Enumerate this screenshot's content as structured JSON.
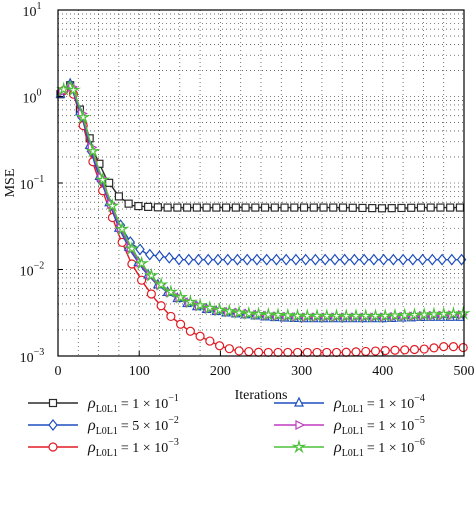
{
  "chart_data": {
    "type": "line",
    "title": "",
    "xlabel": "Iterations",
    "ylabel": "MSE",
    "x_scale": "linear",
    "y_scale": "log",
    "xlim": [
      0,
      500
    ],
    "ylim": [
      0.001,
      10
    ],
    "grid": true,
    "x_ticks": [
      0,
      100,
      200,
      300,
      400,
      500
    ],
    "y_ticks": [
      {
        "value": 0.001,
        "base": "10",
        "exp": "−3"
      },
      {
        "value": 0.01,
        "base": "10",
        "exp": "−2"
      },
      {
        "value": 0.1,
        "base": "10",
        "exp": "−1"
      },
      {
        "value": 1,
        "base": "10",
        "exp": "0"
      },
      {
        "value": 10,
        "base": "10",
        "exp": "1"
      }
    ],
    "legend_position": "bottom",
    "series": [
      {
        "name": "ρL0L1 = 1 × 10−1",
        "legend": {
          "rho": "ρ",
          "sub": "L0L1",
          "coef": "= 1 × 10",
          "exp": "−1"
        },
        "color": "#2b2b2b",
        "marker": "square",
        "x": [
          0,
          15,
          30,
          45,
          60,
          75,
          90,
          110,
          130,
          150,
          200,
          250,
          300,
          350,
          400,
          450,
          500
        ],
        "y": [
          1.0,
          1.35,
          0.6,
          0.22,
          0.11,
          0.07,
          0.055,
          0.053,
          0.052,
          0.052,
          0.052,
          0.052,
          0.052,
          0.052,
          0.051,
          0.052,
          0.052
        ]
      },
      {
        "name": "ρL0L1 = 5 × 10−2",
        "legend": {
          "rho": "ρ",
          "sub": "L0L1",
          "coef": "= 5 × 10",
          "exp": "−2"
        },
        "color": "#1f4fbf",
        "marker": "diamond",
        "x": [
          0,
          15,
          30,
          45,
          60,
          75,
          90,
          110,
          130,
          150,
          200,
          250,
          300,
          350,
          400,
          450,
          500
        ],
        "y": [
          1.0,
          1.4,
          0.55,
          0.17,
          0.07,
          0.035,
          0.02,
          0.015,
          0.014,
          0.013,
          0.013,
          0.013,
          0.013,
          0.013,
          0.013,
          0.013,
          0.013
        ]
      },
      {
        "name": "ρL0L1 = 1 × 10−3",
        "legend": {
          "rho": "ρ",
          "sub": "L0L1",
          "coef": "= 1 × 10",
          "exp": "−3"
        },
        "color": "#e01b24",
        "marker": "circle",
        "x": [
          0,
          15,
          30,
          45,
          60,
          75,
          90,
          105,
          120,
          140,
          160,
          180,
          200,
          220,
          250,
          300,
          350,
          400,
          450,
          480,
          500
        ],
        "y": [
          1.0,
          1.4,
          0.5,
          0.15,
          0.06,
          0.025,
          0.012,
          0.007,
          0.0045,
          0.0028,
          0.002,
          0.0016,
          0.0013,
          0.00115,
          0.0011,
          0.0011,
          0.0011,
          0.00115,
          0.0012,
          0.0013,
          0.00125
        ]
      },
      {
        "name": "ρL0L1 = 1 × 10−4",
        "legend": {
          "rho": "ρ",
          "sub": "L0L1",
          "coef": "= 1 × 10",
          "exp": "−4"
        },
        "color": "#1f4fbf",
        "marker": "triangle",
        "x": [
          0,
          15,
          30,
          45,
          60,
          75,
          90,
          105,
          120,
          140,
          160,
          180,
          200,
          230,
          260,
          300,
          350,
          400,
          450,
          500
        ],
        "y": [
          1.0,
          1.4,
          0.55,
          0.17,
          0.07,
          0.03,
          0.016,
          0.01,
          0.007,
          0.005,
          0.004,
          0.0035,
          0.0032,
          0.003,
          0.0028,
          0.0027,
          0.0027,
          0.0027,
          0.0028,
          0.0028
        ]
      },
      {
        "name": "ρL0L1 = 1 × 10−5",
        "legend": {
          "rho": "ρ",
          "sub": "L0L1",
          "coef": "= 1 × 10",
          "exp": "−5"
        },
        "color": "#c03cc0",
        "marker": "triangle-right",
        "x": [
          0,
          15,
          30,
          45,
          60,
          75,
          90,
          105,
          120,
          140,
          160,
          180,
          200,
          230,
          260,
          300,
          350,
          400,
          450,
          500
        ],
        "y": [
          1.0,
          1.45,
          0.6,
          0.19,
          0.075,
          0.033,
          0.017,
          0.0105,
          0.0072,
          0.0052,
          0.0042,
          0.0036,
          0.0033,
          0.0031,
          0.0029,
          0.0028,
          0.0028,
          0.0028,
          0.0029,
          0.003
        ]
      },
      {
        "name": "ρL0L1 = 1 × 10−6",
        "legend": {
          "rho": "ρ",
          "sub": "L0L1",
          "coef": "= 1 × 10",
          "exp": "−6"
        },
        "color": "#4cbf3a",
        "marker": "star",
        "x": [
          0,
          15,
          30,
          45,
          60,
          75,
          90,
          105,
          120,
          140,
          160,
          180,
          200,
          230,
          260,
          300,
          350,
          400,
          450,
          500
        ],
        "y": [
          1.0,
          1.5,
          0.62,
          0.2,
          0.08,
          0.035,
          0.018,
          0.011,
          0.0075,
          0.0054,
          0.0043,
          0.0037,
          0.0034,
          0.0031,
          0.003,
          0.0029,
          0.0029,
          0.0029,
          0.003,
          0.0031
        ]
      }
    ]
  }
}
